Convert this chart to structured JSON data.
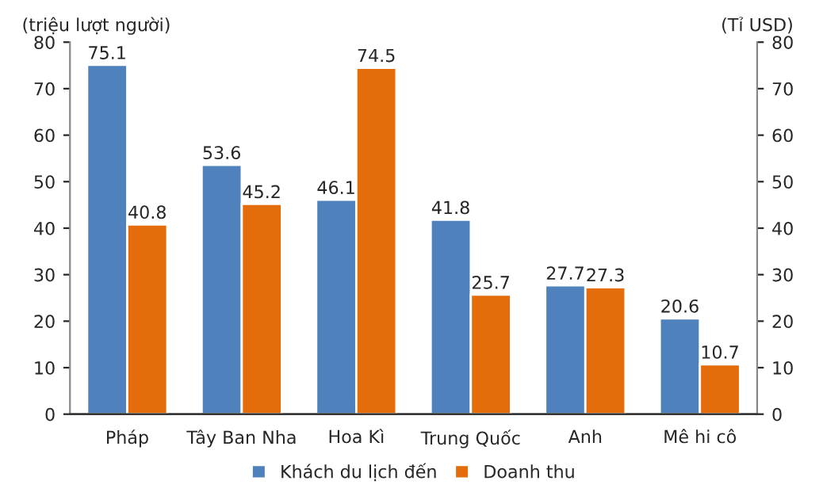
{
  "chart_data": {
    "type": "bar",
    "ylabel": "(triệu lượt người)",
    "y2label": "(Tỉ USD)",
    "categories": [
      "Pháp",
      "Tây Ban Nha",
      "Hoa Kì",
      "Trung Quốc",
      "Anh",
      "Mê hi cô"
    ],
    "series": [
      {
        "name": "Khách du lịch đến",
        "color": "#4f81bd",
        "values": [
          75.1,
          53.6,
          46.1,
          41.8,
          27.7,
          20.6
        ]
      },
      {
        "name": "Doanh thu",
        "color": "#e46c0a",
        "axis": "y2",
        "values": [
          40.8,
          45.2,
          74.5,
          25.7,
          27.3,
          10.7
        ]
      }
    ],
    "ylim": [
      0,
      80
    ],
    "yticks": [
      0,
      10,
      20,
      30,
      40,
      50,
      60,
      70,
      80
    ],
    "y2lim": [
      0,
      80
    ],
    "y2ticks": [
      0,
      10,
      20,
      30,
      40,
      50,
      60,
      70,
      80
    ],
    "data_labels": true,
    "grid": false,
    "legend": "bottom"
  }
}
